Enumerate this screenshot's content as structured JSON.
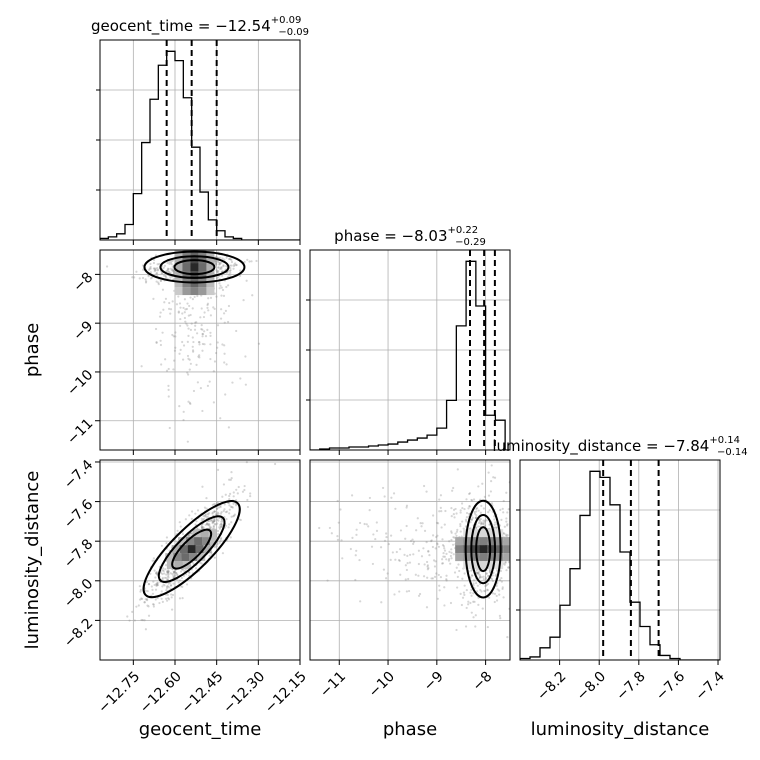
{
  "chart_data": {
    "type": "corner",
    "parameters": [
      "geocent_time",
      "phase",
      "luminosity_distance"
    ],
    "titles": [
      {
        "text": "geocent_time = −12.54",
        "plus": "+0.09",
        "minus": "−0.09"
      },
      {
        "text": "phase = −8.03",
        "plus": "+0.22",
        "minus": "−0.29"
      },
      {
        "text": "luminosity_distance = −7.84",
        "plus": "+0.14",
        "minus": "−0.14"
      }
    ],
    "ranges": [
      [
        -12.87,
        -12.15
      ],
      [
        -11.6,
        -7.5
      ],
      [
        -8.4,
        -7.39
      ]
    ],
    "ticks": [
      {
        "values": [
          -12.75,
          -12.6,
          -12.45,
          -12.3,
          -12.15
        ],
        "labels": [
          "−12.75",
          "−12.60",
          "−12.45",
          "−12.30",
          "−12.15"
        ]
      },
      {
        "values": [
          -11,
          -10,
          -9,
          -8
        ],
        "labels": [
          "−11",
          "−10",
          "−9",
          "−8"
        ]
      },
      {
        "values": [
          -8.2,
          -8.0,
          -7.8,
          -7.6,
          -7.4
        ],
        "labels": [
          "−8.2",
          "−8.0",
          "−7.8",
          "−7.6",
          "−7.4"
        ]
      }
    ],
    "quantiles": [
      [
        -12.63,
        -12.54,
        -12.45
      ],
      [
        -8.32,
        -8.03,
        -7.81
      ],
      [
        -7.98,
        -7.84,
        -7.7
      ]
    ],
    "histograms": [
      {
        "edges_start": -12.87,
        "bin_width": 0.03,
        "counts": [
          1,
          2,
          4,
          10,
          30,
          63,
          91,
          113,
          122,
          116,
          92,
          60,
          31,
          13,
          6,
          2,
          1,
          0,
          0,
          0,
          0,
          0,
          0,
          0
        ]
      },
      {
        "edges_start": -11.6,
        "bin_width": 0.2,
        "counts": [
          0,
          1,
          2,
          2,
          3,
          3,
          4,
          5,
          6,
          8,
          10,
          12,
          15,
          22,
          50,
          125,
          190,
          145,
          35,
          30,
          0
        ]
      },
      {
        "edges_start": -8.4,
        "bin_width": 0.0505,
        "counts": [
          1,
          2,
          8,
          15,
          36,
          60,
          95,
          124,
          120,
          102,
          71,
          38,
          22,
          10,
          3,
          1,
          0,
          0,
          0,
          0
        ]
      }
    ],
    "grid": true,
    "legend": "none"
  }
}
